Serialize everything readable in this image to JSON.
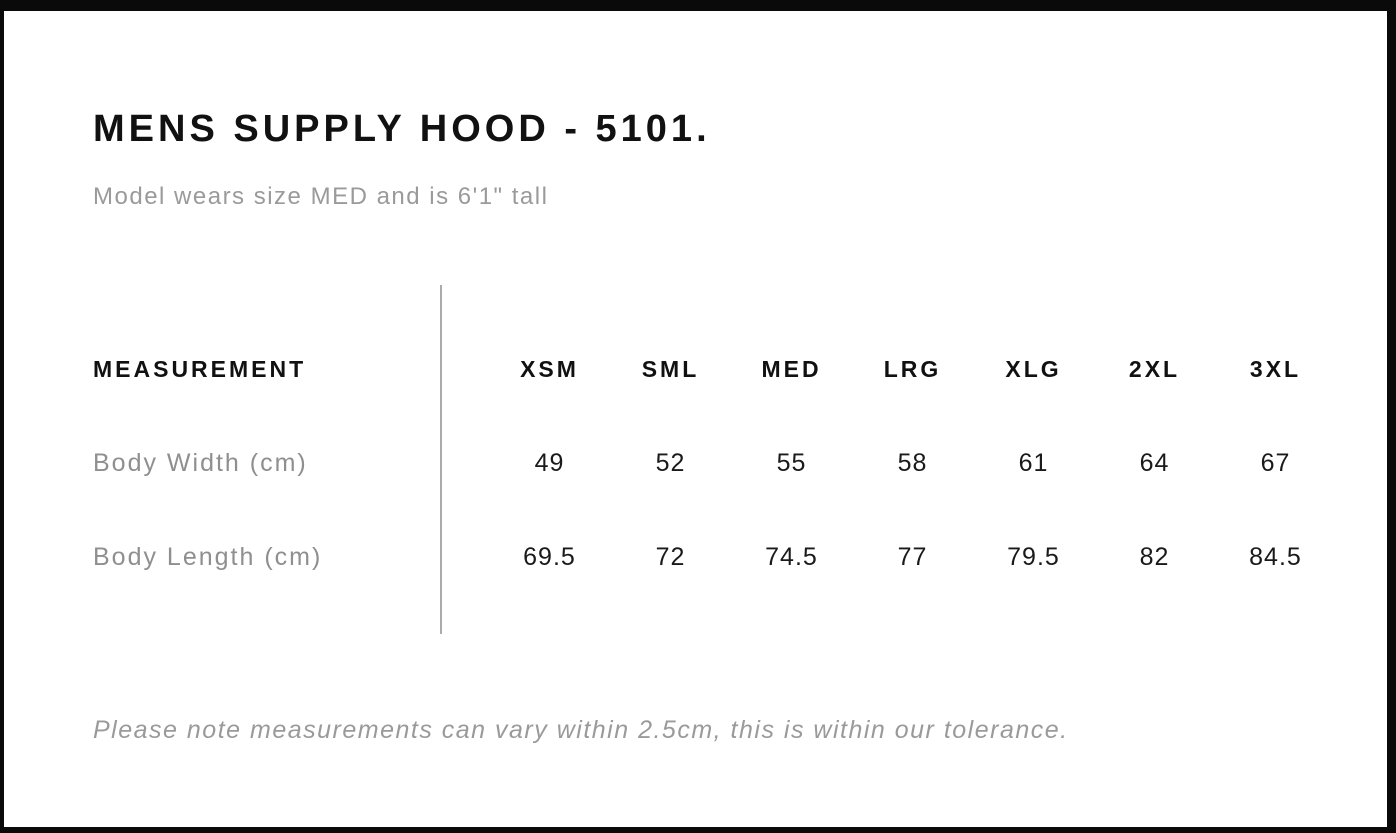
{
  "header": {
    "title": "MENS SUPPLY HOOD - 5101.",
    "subtitle": "Model wears size MED and is 6'1\" tall"
  },
  "footer": {
    "note": "Please note measurements can vary within 2.5cm, this is within our tolerance."
  },
  "colors": {
    "frame": "#0a0a0a",
    "text_primary": "#111111",
    "text_muted": "#9a9a9a",
    "divider": "#ababab"
  },
  "chart_data": {
    "type": "table",
    "title": "MENS SUPPLY HOOD - 5101.",
    "columns": [
      "MEASUREMENT",
      "XSM",
      "SML",
      "MED",
      "LRG",
      "XLG",
      "2XL",
      "3XL"
    ],
    "rows": [
      {
        "label": "Body Width (cm)",
        "values": [
          "49",
          "52",
          "55",
          "58",
          "61",
          "64",
          "67"
        ]
      },
      {
        "label": "Body Length (cm)",
        "values": [
          "69.5",
          "72",
          "74.5",
          "77",
          "79.5",
          "82",
          "84.5"
        ]
      }
    ]
  }
}
